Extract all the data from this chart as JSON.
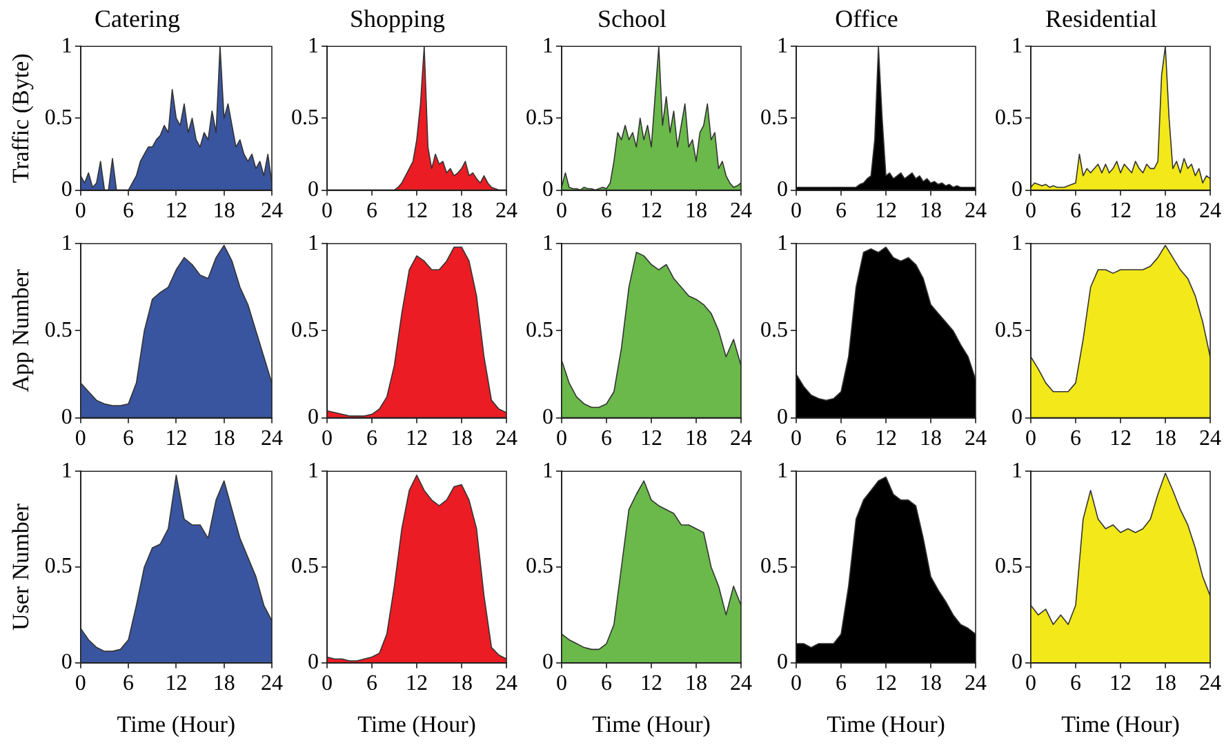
{
  "chart_data": [
    {
      "type": "area",
      "title": "Catering",
      "ylabel": "Traffic (Byte)",
      "x": [
        0,
        0.5,
        1,
        1.5,
        2,
        2.5,
        3,
        3.5,
        4,
        4.5,
        5,
        5.5,
        6,
        6.5,
        7,
        7.5,
        8,
        8.5,
        9,
        9.5,
        10,
        10.5,
        11,
        11.5,
        12,
        12.5,
        13,
        13.5,
        14,
        14.5,
        15,
        15.5,
        16,
        16.5,
        17,
        17.5,
        18,
        18.5,
        19,
        19.5,
        20,
        20.5,
        21,
        21.5,
        22,
        22.5,
        23,
        23.5,
        24
      ],
      "series": [
        {
          "color": "#3a55a0",
          "values": [
            0.1,
            0.05,
            0.12,
            0.02,
            0.05,
            0.2,
            0,
            0,
            0.22,
            0,
            0,
            0,
            0,
            0.05,
            0.1,
            0.2,
            0.25,
            0.3,
            0.3,
            0.35,
            0.38,
            0.45,
            0.4,
            0.7,
            0.5,
            0.45,
            0.6,
            0.4,
            0.5,
            0.35,
            0.3,
            0.4,
            0.35,
            0.55,
            0.4,
            1.0,
            0.5,
            0.6,
            0.45,
            0.3,
            0.35,
            0.25,
            0.2,
            0.25,
            0.15,
            0.2,
            0.1,
            0.25,
            0.05
          ]
        }
      ],
      "xlim": [
        0,
        24
      ],
      "ylim": [
        0,
        1
      ],
      "xticks": [
        0,
        6,
        12,
        18,
        24
      ],
      "yticks": [
        0,
        0.5,
        1
      ]
    },
    {
      "type": "area",
      "title": "Shopping",
      "x": [
        0,
        0.5,
        1,
        1.5,
        2,
        2.5,
        3,
        3.5,
        4,
        4.5,
        5,
        5.5,
        6,
        6.5,
        7,
        7.5,
        8,
        8.5,
        9,
        9.5,
        10,
        10.5,
        11,
        11.5,
        12,
        12.5,
        13,
        13.5,
        14,
        14.5,
        15,
        15.5,
        16,
        16.5,
        17,
        17.5,
        18,
        18.5,
        19,
        19.5,
        20,
        20.5,
        21,
        21.5,
        22,
        22.5,
        23,
        23.5,
        24
      ],
      "series": [
        {
          "color": "#ec1c24",
          "values": [
            0,
            0,
            0,
            0,
            0,
            0,
            0,
            0,
            0,
            0,
            0,
            0,
            0,
            0,
            0,
            0,
            0,
            0,
            0,
            0.02,
            0.05,
            0.1,
            0.15,
            0.2,
            0.35,
            0.6,
            1.0,
            0.3,
            0.15,
            0.25,
            0.18,
            0.2,
            0.12,
            0.15,
            0.1,
            0.12,
            0.15,
            0.2,
            0.1,
            0.12,
            0.08,
            0.05,
            0.1,
            0.05,
            0.02,
            0.01,
            0,
            0,
            0
          ]
        }
      ],
      "xlim": [
        0,
        24
      ],
      "ylim": [
        0,
        1
      ],
      "xticks": [
        0,
        6,
        12,
        18,
        24
      ],
      "yticks": [
        0,
        0.5,
        1
      ]
    },
    {
      "type": "area",
      "title": "School",
      "x": [
        0,
        0.5,
        1,
        1.5,
        2,
        2.5,
        3,
        3.5,
        4,
        4.5,
        5,
        5.5,
        6,
        6.5,
        7,
        7.5,
        8,
        8.5,
        9,
        9.5,
        10,
        10.5,
        11,
        11.5,
        12,
        12.5,
        13,
        13.5,
        14,
        14.5,
        15,
        15.5,
        16,
        16.5,
        17,
        17.5,
        18,
        18.5,
        19,
        19.5,
        20,
        20.5,
        21,
        21.5,
        22,
        22.5,
        23,
        23.5,
        24
      ],
      "series": [
        {
          "color": "#6ab94a",
          "values": [
            0.02,
            0.12,
            0.02,
            0.01,
            0.01,
            0,
            0.02,
            0.01,
            0.01,
            0,
            0.01,
            0.02,
            0.01,
            0.05,
            0.2,
            0.4,
            0.35,
            0.45,
            0.35,
            0.4,
            0.3,
            0.5,
            0.35,
            0.45,
            0.3,
            0.65,
            1.0,
            0.45,
            0.65,
            0.4,
            0.55,
            0.3,
            0.45,
            0.6,
            0.3,
            0.35,
            0.2,
            0.4,
            0.45,
            0.6,
            0.35,
            0.4,
            0.15,
            0.2,
            0.1,
            0.05,
            0.02,
            0.03,
            0.05
          ]
        }
      ],
      "xlim": [
        0,
        24
      ],
      "ylim": [
        0,
        1
      ],
      "xticks": [
        0,
        6,
        12,
        18,
        24
      ],
      "yticks": [
        0,
        0.5,
        1
      ]
    },
    {
      "type": "area",
      "title": "Office",
      "x": [
        0,
        0.5,
        1,
        1.5,
        2,
        2.5,
        3,
        3.5,
        4,
        4.5,
        5,
        5.5,
        6,
        6.5,
        7,
        7.5,
        8,
        8.5,
        9,
        9.5,
        10,
        10.5,
        11,
        11.5,
        12,
        12.5,
        13,
        13.5,
        14,
        14.5,
        15,
        15.5,
        16,
        16.5,
        17,
        17.5,
        18,
        18.5,
        19,
        19.5,
        20,
        20.5,
        21,
        21.5,
        22,
        22.5,
        23,
        23.5,
        24
      ],
      "series": [
        {
          "color": "#000000",
          "values": [
            0.02,
            0.02,
            0.02,
            0.02,
            0.02,
            0.02,
            0.02,
            0.02,
            0.02,
            0.02,
            0.02,
            0.02,
            0.02,
            0.02,
            0.02,
            0.02,
            0.02,
            0.04,
            0.05,
            0.08,
            0.1,
            0.35,
            1.0,
            0.5,
            0.1,
            0.12,
            0.08,
            0.1,
            0.12,
            0.08,
            0.1,
            0.12,
            0.08,
            0.1,
            0.06,
            0.08,
            0.05,
            0.06,
            0.04,
            0.05,
            0.03,
            0.04,
            0.02,
            0.03,
            0.02,
            0.02,
            0.02,
            0.02,
            0.02
          ]
        }
      ],
      "xlim": [
        0,
        24
      ],
      "ylim": [
        0,
        1
      ],
      "xticks": [
        0,
        6,
        12,
        18,
        24
      ],
      "yticks": [
        0,
        0.5,
        1
      ]
    },
    {
      "type": "area",
      "title": "Residential",
      "x": [
        0,
        0.5,
        1,
        1.5,
        2,
        2.5,
        3,
        3.5,
        4,
        4.5,
        5,
        5.5,
        6,
        6.5,
        7,
        7.5,
        8,
        8.5,
        9,
        9.5,
        10,
        10.5,
        11,
        11.5,
        12,
        12.5,
        13,
        13.5,
        14,
        14.5,
        15,
        15.5,
        16,
        16.5,
        17,
        17.5,
        18,
        18.5,
        19,
        19.5,
        20,
        20.5,
        21,
        21.5,
        22,
        22.5,
        23,
        23.5,
        24
      ],
      "series": [
        {
          "color": "#f2e81a",
          "values": [
            0.02,
            0.05,
            0.04,
            0.03,
            0.04,
            0.02,
            0.03,
            0.02,
            0.02,
            0.02,
            0.03,
            0.04,
            0.05,
            0.25,
            0.1,
            0.15,
            0.12,
            0.15,
            0.18,
            0.12,
            0.18,
            0.12,
            0.15,
            0.2,
            0.12,
            0.18,
            0.15,
            0.12,
            0.2,
            0.15,
            0.12,
            0.18,
            0.15,
            0.15,
            0.2,
            0.8,
            1.0,
            0.5,
            0.15,
            0.2,
            0.12,
            0.22,
            0.15,
            0.18,
            0.1,
            0.15,
            0.05,
            0.1,
            0.08
          ]
        }
      ],
      "xlim": [
        0,
        24
      ],
      "ylim": [
        0,
        1
      ],
      "xticks": [
        0,
        6,
        12,
        18,
        24
      ],
      "yticks": [
        0,
        0.5,
        1
      ]
    },
    {
      "type": "area",
      "ylabel": "App Number",
      "x": [
        0,
        1,
        2,
        3,
        4,
        5,
        6,
        7,
        8,
        9,
        10,
        11,
        12,
        13,
        14,
        15,
        16,
        17,
        18,
        19,
        20,
        21,
        22,
        23,
        24
      ],
      "series": [
        {
          "color": "#3a55a0",
          "values": [
            0.2,
            0.15,
            0.1,
            0.08,
            0.07,
            0.07,
            0.08,
            0.2,
            0.5,
            0.68,
            0.72,
            0.75,
            0.85,
            0.92,
            0.88,
            0.82,
            0.8,
            0.92,
            0.99,
            0.9,
            0.75,
            0.65,
            0.5,
            0.35,
            0.2
          ]
        }
      ],
      "xlim": [
        0,
        24
      ],
      "ylim": [
        0,
        1
      ],
      "xticks": [
        0,
        6,
        12,
        18,
        24
      ],
      "yticks": [
        0,
        0.5,
        1
      ]
    },
    {
      "type": "area",
      "x": [
        0,
        1,
        2,
        3,
        4,
        5,
        6,
        7,
        8,
        9,
        10,
        11,
        12,
        13,
        14,
        15,
        16,
        17,
        18,
        19,
        20,
        21,
        22,
        23,
        24
      ],
      "series": [
        {
          "color": "#ec1c24",
          "values": [
            0.04,
            0.03,
            0.02,
            0.01,
            0.01,
            0.01,
            0.02,
            0.05,
            0.12,
            0.3,
            0.6,
            0.85,
            0.93,
            0.9,
            0.85,
            0.85,
            0.9,
            0.98,
            0.98,
            0.9,
            0.7,
            0.35,
            0.1,
            0.05,
            0.03
          ]
        }
      ],
      "xlim": [
        0,
        24
      ],
      "ylim": [
        0,
        1
      ],
      "xticks": [
        0,
        6,
        12,
        18,
        24
      ],
      "yticks": [
        0,
        0.5,
        1
      ]
    },
    {
      "type": "area",
      "x": [
        0,
        1,
        2,
        3,
        4,
        5,
        6,
        7,
        8,
        9,
        10,
        11,
        12,
        13,
        14,
        15,
        16,
        17,
        18,
        19,
        20,
        21,
        22,
        23,
        24
      ],
      "series": [
        {
          "color": "#6ab94a",
          "values": [
            0.33,
            0.2,
            0.12,
            0.08,
            0.06,
            0.06,
            0.08,
            0.15,
            0.4,
            0.75,
            0.95,
            0.93,
            0.88,
            0.85,
            0.88,
            0.8,
            0.75,
            0.7,
            0.68,
            0.65,
            0.6,
            0.5,
            0.35,
            0.45,
            0.3
          ]
        }
      ],
      "xlim": [
        0,
        24
      ],
      "ylim": [
        0,
        1
      ],
      "xticks": [
        0,
        6,
        12,
        18,
        24
      ],
      "yticks": [
        0,
        0.5,
        1
      ]
    },
    {
      "type": "area",
      "x": [
        0,
        1,
        2,
        3,
        4,
        5,
        6,
        7,
        8,
        9,
        10,
        11,
        12,
        13,
        14,
        15,
        16,
        17,
        18,
        19,
        20,
        21,
        22,
        23,
        24
      ],
      "series": [
        {
          "color": "#000000",
          "values": [
            0.25,
            0.18,
            0.13,
            0.11,
            0.1,
            0.11,
            0.15,
            0.35,
            0.75,
            0.95,
            0.97,
            0.95,
            0.98,
            0.92,
            0.9,
            0.92,
            0.88,
            0.8,
            0.65,
            0.6,
            0.55,
            0.5,
            0.42,
            0.35,
            0.22
          ]
        }
      ],
      "xlim": [
        0,
        24
      ],
      "ylim": [
        0,
        1
      ],
      "xticks": [
        0,
        6,
        12,
        18,
        24
      ],
      "yticks": [
        0,
        0.5,
        1
      ]
    },
    {
      "type": "area",
      "x": [
        0,
        1,
        2,
        3,
        4,
        5,
        6,
        7,
        8,
        9,
        10,
        11,
        12,
        13,
        14,
        15,
        16,
        17,
        18,
        19,
        20,
        21,
        22,
        23,
        24
      ],
      "series": [
        {
          "color": "#f2e81a",
          "values": [
            0.35,
            0.28,
            0.2,
            0.15,
            0.15,
            0.15,
            0.2,
            0.45,
            0.75,
            0.85,
            0.85,
            0.83,
            0.85,
            0.85,
            0.85,
            0.85,
            0.87,
            0.92,
            0.99,
            0.92,
            0.85,
            0.8,
            0.7,
            0.55,
            0.35
          ]
        }
      ],
      "xlim": [
        0,
        24
      ],
      "ylim": [
        0,
        1
      ],
      "xticks": [
        0,
        6,
        12,
        18,
        24
      ],
      "yticks": [
        0,
        0.5,
        1
      ]
    },
    {
      "type": "area",
      "ylabel": "User Number",
      "xlabel": "Time (Hour)",
      "x": [
        0,
        1,
        2,
        3,
        4,
        5,
        6,
        7,
        8,
        9,
        10,
        11,
        12,
        13,
        14,
        15,
        16,
        17,
        18,
        19,
        20,
        21,
        22,
        23,
        24
      ],
      "series": [
        {
          "color": "#3a55a0",
          "values": [
            0.18,
            0.12,
            0.08,
            0.06,
            0.06,
            0.07,
            0.12,
            0.3,
            0.5,
            0.6,
            0.62,
            0.7,
            0.98,
            0.75,
            0.72,
            0.72,
            0.65,
            0.85,
            0.95,
            0.8,
            0.65,
            0.55,
            0.45,
            0.3,
            0.22
          ]
        }
      ],
      "xlim": [
        0,
        24
      ],
      "ylim": [
        0,
        1
      ],
      "xticks": [
        0,
        6,
        12,
        18,
        24
      ],
      "yticks": [
        0,
        0.5,
        1
      ]
    },
    {
      "type": "area",
      "xlabel": "Time (Hour)",
      "x": [
        0,
        1,
        2,
        3,
        4,
        5,
        6,
        7,
        8,
        9,
        10,
        11,
        12,
        13,
        14,
        15,
        16,
        17,
        18,
        19,
        20,
        21,
        22,
        23,
        24
      ],
      "series": [
        {
          "color": "#ec1c24",
          "values": [
            0.03,
            0.02,
            0.02,
            0.01,
            0.01,
            0.02,
            0.03,
            0.05,
            0.15,
            0.4,
            0.7,
            0.9,
            0.98,
            0.9,
            0.85,
            0.82,
            0.85,
            0.92,
            0.93,
            0.85,
            0.7,
            0.35,
            0.08,
            0.04,
            0.02
          ]
        }
      ],
      "xlim": [
        0,
        24
      ],
      "ylim": [
        0,
        1
      ],
      "xticks": [
        0,
        6,
        12,
        18,
        24
      ],
      "yticks": [
        0,
        0.5,
        1
      ]
    },
    {
      "type": "area",
      "xlabel": "Time (Hour)",
      "x": [
        0,
        1,
        2,
        3,
        4,
        5,
        6,
        7,
        8,
        9,
        10,
        11,
        12,
        13,
        14,
        15,
        16,
        17,
        18,
        19,
        20,
        21,
        22,
        23,
        24
      ],
      "series": [
        {
          "color": "#6ab94a",
          "values": [
            0.15,
            0.12,
            0.1,
            0.08,
            0.07,
            0.07,
            0.1,
            0.2,
            0.5,
            0.8,
            0.88,
            0.95,
            0.85,
            0.82,
            0.8,
            0.78,
            0.72,
            0.72,
            0.7,
            0.68,
            0.5,
            0.4,
            0.25,
            0.4,
            0.3
          ]
        }
      ],
      "xlim": [
        0,
        24
      ],
      "ylim": [
        0,
        1
      ],
      "xticks": [
        0,
        6,
        12,
        18,
        24
      ],
      "yticks": [
        0,
        0.5,
        1
      ]
    },
    {
      "type": "area",
      "xlabel": "Time (Hour)",
      "x": [
        0,
        1,
        2,
        3,
        4,
        5,
        6,
        7,
        8,
        9,
        10,
        11,
        12,
        13,
        14,
        15,
        16,
        17,
        18,
        19,
        20,
        21,
        22,
        23,
        24
      ],
      "series": [
        {
          "color": "#000000",
          "values": [
            0.1,
            0.1,
            0.08,
            0.1,
            0.1,
            0.1,
            0.15,
            0.4,
            0.75,
            0.85,
            0.9,
            0.95,
            0.97,
            0.88,
            0.85,
            0.85,
            0.82,
            0.65,
            0.45,
            0.38,
            0.32,
            0.25,
            0.2,
            0.18,
            0.15
          ]
        }
      ],
      "xlim": [
        0,
        24
      ],
      "ylim": [
        0,
        1
      ],
      "xticks": [
        0,
        6,
        12,
        18,
        24
      ],
      "yticks": [
        0,
        0.5,
        1
      ]
    },
    {
      "type": "area",
      "xlabel": "Time (Hour)",
      "x": [
        0,
        1,
        2,
        3,
        4,
        5,
        6,
        7,
        8,
        9,
        10,
        11,
        12,
        13,
        14,
        15,
        16,
        17,
        18,
        19,
        20,
        21,
        22,
        23,
        24
      ],
      "series": [
        {
          "color": "#f2e81a",
          "values": [
            0.3,
            0.25,
            0.28,
            0.2,
            0.25,
            0.2,
            0.3,
            0.75,
            0.9,
            0.75,
            0.7,
            0.72,
            0.68,
            0.7,
            0.68,
            0.7,
            0.75,
            0.88,
            0.99,
            0.9,
            0.8,
            0.72,
            0.6,
            0.45,
            0.35
          ]
        }
      ],
      "xlim": [
        0,
        24
      ],
      "ylim": [
        0,
        1
      ],
      "xticks": [
        0,
        6,
        12,
        18,
        24
      ],
      "yticks": [
        0,
        0.5,
        1
      ]
    }
  ]
}
